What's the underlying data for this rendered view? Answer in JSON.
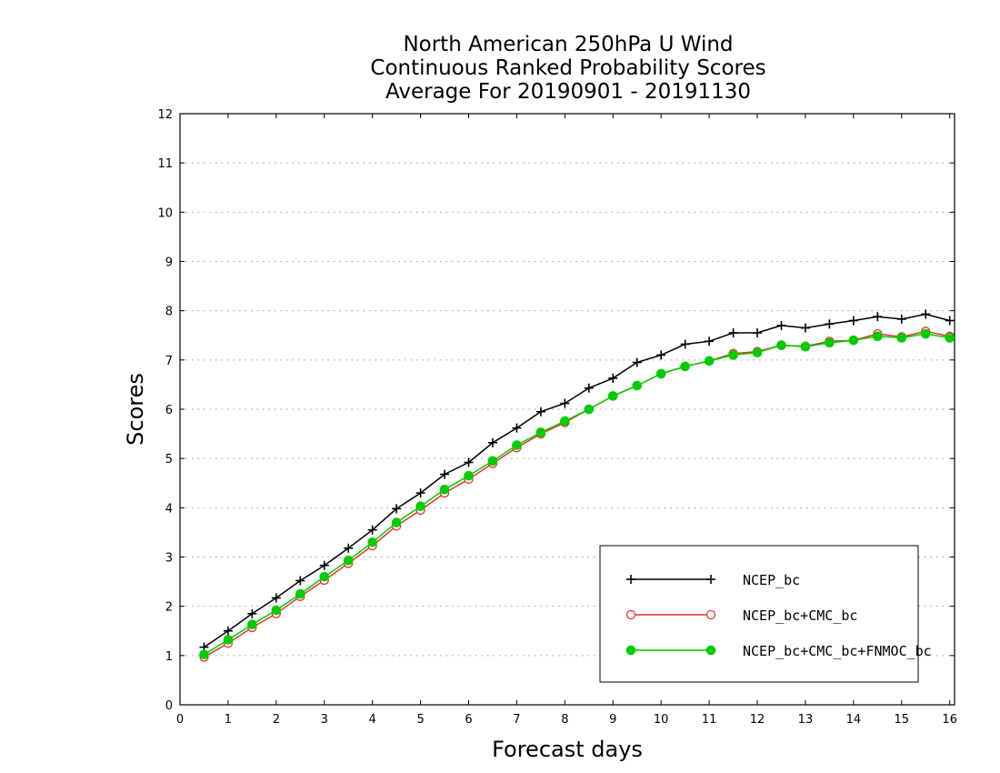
{
  "chart_data": {
    "type": "line",
    "title": [
      "North American 250hPa U Wind",
      "Continuous Ranked Probability Scores",
      "Average For 20190901 - 20191130"
    ],
    "xlabel": "Forecast days",
    "ylabel": "Scores",
    "xlim": [
      0,
      16.1
    ],
    "ylim": [
      0,
      12
    ],
    "xticks": [
      "0",
      "1",
      "2",
      "3",
      "4",
      "5",
      "6",
      "7",
      "8",
      "9",
      "10",
      "11",
      "12",
      "13",
      "14",
      "15",
      "16"
    ],
    "yticks": [
      "0",
      "1",
      "2",
      "3",
      "4",
      "5",
      "6",
      "7",
      "8",
      "9",
      "10",
      "11",
      "12"
    ],
    "grid": "horizontal dotted",
    "legend_position": "bottom-right",
    "x": [
      0.5,
      1,
      1.5,
      2,
      2.5,
      3,
      3.5,
      4,
      4.5,
      5,
      5.5,
      6,
      6.5,
      7,
      7.5,
      8,
      8.5,
      9,
      9.5,
      10,
      10.5,
      11,
      11.5,
      12,
      12.5,
      13,
      13.5,
      14,
      14.5,
      15,
      15.5,
      16
    ],
    "series": [
      {
        "name": "NCEP_bc",
        "color": "#000000",
        "marker": "plus",
        "values": [
          1.17,
          1.5,
          1.85,
          2.17,
          2.52,
          2.83,
          3.18,
          3.55,
          3.98,
          4.3,
          4.68,
          4.92,
          5.32,
          5.62,
          5.95,
          6.12,
          6.43,
          6.63,
          6.95,
          7.1,
          7.32,
          7.38,
          7.55,
          7.55,
          7.7,
          7.65,
          7.73,
          7.8,
          7.88,
          7.83,
          7.93,
          7.8
        ]
      },
      {
        "name": "NCEP_bc+CMC_bc",
        "color": "#e8332c",
        "marker": "open-circle",
        "values": [
          0.97,
          1.25,
          1.57,
          1.85,
          2.2,
          2.53,
          2.87,
          3.23,
          3.63,
          3.95,
          4.3,
          4.58,
          4.9,
          5.22,
          5.5,
          5.73,
          6.0,
          6.27,
          6.48,
          6.72,
          6.87,
          6.98,
          7.13,
          7.17,
          7.3,
          7.28,
          7.38,
          7.4,
          7.53,
          7.47,
          7.58,
          7.48
        ]
      },
      {
        "name": "NCEP_bc+CMC_bc+FNMOC_bc",
        "color": "#00cc00",
        "marker": "filled-circle",
        "values": [
          1.02,
          1.32,
          1.63,
          1.92,
          2.25,
          2.6,
          2.93,
          3.3,
          3.7,
          4.03,
          4.37,
          4.65,
          4.95,
          5.27,
          5.53,
          5.76,
          6.0,
          6.27,
          6.48,
          6.72,
          6.87,
          6.98,
          7.1,
          7.15,
          7.3,
          7.27,
          7.35,
          7.4,
          7.48,
          7.45,
          7.53,
          7.45
        ]
      }
    ]
  }
}
